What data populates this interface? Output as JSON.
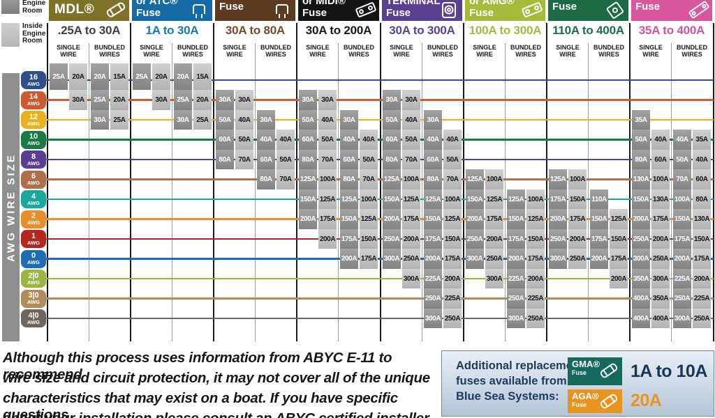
{
  "legend": {
    "engine_room": "Engine Room",
    "inside_engine_room": "Inside Engine Room"
  },
  "axis": {
    "label": "AWG WIRE SIZE",
    "row_unit": "AWG"
  },
  "subheaders": {
    "single": "SINGLE WIRE",
    "bundled": "BUNDLED WIRES"
  },
  "footer": {
    "lines": [
      "Although this process uses information from ABYC E-11 to recommend",
      "wire size and circuit protection, it may not cover all of the unique",
      "characteristics that may exist on a boat. If you have specific questions",
      "about your installation please consult an ABYC certified installer."
    ]
  },
  "info_box": {
    "lines": [
      "Additional replacement",
      "fuses available from",
      "Blue Sea Systems:"
    ],
    "items": [
      {
        "name": "GMA®",
        "sub": "Fuse",
        "color": "#15695e",
        "range": "1A to 10A",
        "range_color": "#16365c"
      },
      {
        "name": "AGA®",
        "sub": "Fuse",
        "color": "#e8941f",
        "range": "20A",
        "range_color": "#e8941f"
      }
    ]
  },
  "chart_data": {
    "type": "table",
    "title": "Fuse selection by AWG wire size (engine room / inside engine room ratings, single vs bundled wires)",
    "rows": [
      {
        "id": "16",
        "label": "16",
        "color": "#2d4f8e"
      },
      {
        "id": "14",
        "label": "14",
        "color": "#cf5a2e"
      },
      {
        "id": "12",
        "label": "12",
        "color": "#eab11e"
      },
      {
        "id": "10",
        "label": "10",
        "color": "#187a45"
      },
      {
        "id": "8",
        "label": "8",
        "color": "#5b3d94"
      },
      {
        "id": "6",
        "label": "6",
        "color": "#b06f4a"
      },
      {
        "id": "4",
        "label": "4",
        "color": "#18a8a0"
      },
      {
        "id": "2",
        "label": "2",
        "color": "#e88f29"
      },
      {
        "id": "1",
        "label": "1",
        "color": "#b5271d"
      },
      {
        "id": "0",
        "label": "0",
        "color": "#1d6cb5"
      },
      {
        "id": "2|0",
        "label": "2|0",
        "color": "#9cb53c"
      },
      {
        "id": "3|0",
        "label": "3|0",
        "color": "#b28b5a"
      },
      {
        "id": "4|0",
        "label": "4|0",
        "color": "#6f655c"
      }
    ],
    "columns": [
      {
        "id": "mdl",
        "header_lines": [
          "MDL®"
        ],
        "header_color": "#7d7228",
        "range": ".25A to 30A",
        "range_color": "#3f3f3f",
        "icon": "glass-fuse",
        "cells": {
          "single": {
            "16": [
              "25A",
              "20A"
            ],
            "14": [
              null,
              "30A"
            ]
          },
          "bundled": {
            "16": [
              "20A",
              "15A"
            ],
            "14": [
              "25A",
              "20A"
            ],
            "12": [
              "30A",
              "25A"
            ]
          }
        }
      },
      {
        "id": "atc",
        "header_lines": [
          "or ATC®",
          "Fuse"
        ],
        "header_color": "#146ba8",
        "range": "1A to 30A",
        "range_color": "#1a75b5",
        "icon": "blade-fuse",
        "cells": {
          "single": {
            "16": [
              "25A",
              "20A"
            ],
            "14": [
              null,
              "30A"
            ]
          },
          "bundled": {
            "16": [
              "20A",
              "15A"
            ],
            "14": [
              "25A",
              "20A"
            ],
            "12": [
              "30A",
              "25A"
            ]
          }
        }
      },
      {
        "id": "maxi",
        "header_lines": [
          "Fuse"
        ],
        "header_color": "#5d3b23",
        "range": "30A to 80A",
        "range_color": "#7a4a2a",
        "icon": "blade-fuse",
        "cells": {
          "single": {
            "14": [
              "30A",
              "30A"
            ],
            "12": [
              "50A",
              "40A"
            ],
            "10": [
              "60A",
              "50A"
            ],
            "8": [
              "80A",
              "70A"
            ]
          },
          "bundled": {
            "12": [
              "30A",
              null
            ],
            "10": [
              "40A",
              "40A"
            ],
            "8": [
              "60A",
              "50A"
            ],
            "6": [
              "80A",
              "70A"
            ]
          }
        }
      },
      {
        "id": "midi",
        "header_lines": [
          "or MIDI®",
          "Fuse"
        ],
        "header_color": "#141414",
        "range": "30A to 200A",
        "range_color": "#1a1a1a",
        "icon": "bolt-fuse",
        "cells": {
          "single": {
            "14": [
              "30A",
              "30A"
            ],
            "12": [
              "50A",
              "40A"
            ],
            "10": [
              "60A",
              "50A"
            ],
            "8": [
              "80A",
              "70A"
            ],
            "6": [
              "125A",
              "100A"
            ],
            "4": [
              "150A",
              "125A"
            ],
            "2": [
              "200A",
              "175A"
            ],
            "1": [
              null,
              "200A"
            ]
          },
          "bundled": {
            "12": [
              "30A",
              null
            ],
            "10": [
              "40A",
              "40A"
            ],
            "8": [
              "60A",
              "50A"
            ],
            "6": [
              "80A",
              "70A"
            ],
            "4": [
              "125A",
              "100A"
            ],
            "2": [
              "150A",
              "125A"
            ],
            "1": [
              "175A",
              "150A"
            ],
            "0": [
              "200A",
              "175A"
            ]
          }
        }
      },
      {
        "id": "terminal",
        "header_lines": [
          "TERMINAL",
          "Fuse"
        ],
        "header_color": "#5a4090",
        "range": "30A to 300A",
        "range_color": "#5b4195",
        "icon": "terminal-fuse",
        "cells": {
          "single": {
            "14": [
              "30A",
              "30A"
            ],
            "12": [
              "50A",
              "40A"
            ],
            "10": [
              "60A",
              "50A"
            ],
            "8": [
              "80A",
              "70A"
            ],
            "6": [
              "125A",
              "100A"
            ],
            "4": [
              "150A",
              "125A"
            ],
            "2": [
              "200A",
              "175A"
            ],
            "1": [
              "250A",
              "200A"
            ],
            "0": [
              "300A",
              "250A"
            ],
            "2|0": [
              null,
              "300A"
            ]
          },
          "bundled": {
            "12": [
              "30A",
              null
            ],
            "10": [
              "40A",
              "40A"
            ],
            "8": [
              "60A",
              "50A"
            ],
            "6": [
              "80A",
              "70A"
            ],
            "4": [
              "125A",
              "100A"
            ],
            "2": [
              "150A",
              "125A"
            ],
            "1": [
              "175A",
              "150A"
            ],
            "0": [
              "200A",
              "175A"
            ],
            "2|0": [
              "225A",
              "200A"
            ],
            "3|0": [
              "250A",
              "225A"
            ],
            "4|0": [
              "300A",
              "250A"
            ]
          }
        }
      },
      {
        "id": "amg",
        "header_lines": [
          "or AMG®",
          "Fuse"
        ],
        "header_color": "#a8ba3c",
        "range": "100A to 300A",
        "range_color": "#a6b842",
        "icon": "bolt-fuse",
        "cells": {
          "single": {
            "6": [
              "125A",
              "100A"
            ],
            "4": [
              "150A",
              "125A"
            ],
            "2": [
              "200A",
              "175A"
            ],
            "1": [
              "250A",
              "200A"
            ],
            "0": [
              "300A",
              "250A"
            ],
            "2|0": [
              null,
              "300A"
            ]
          },
          "bundled": {
            "4": [
              "125A",
              "100A"
            ],
            "2": [
              "150A",
              "125A"
            ],
            "1": [
              "175A",
              "150A"
            ],
            "0": [
              "200A",
              "175A"
            ],
            "2|0": [
              "225A",
              "200A"
            ],
            "3|0": [
              "250A",
              "225A"
            ],
            "4|0": [
              "300A",
              "250A"
            ]
          }
        }
      },
      {
        "id": "anl",
        "header_lines": [
          "Fuse"
        ],
        "header_color": "#1c6b44",
        "range": "110A to 400A",
        "range_color": "#1e6e48",
        "icon": "anl-fuse",
        "cells": {
          "single": {
            "6": [
              "125A",
              "100A"
            ],
            "4": [
              "175A",
              "150A"
            ],
            "2": [
              "200A",
              "175A"
            ],
            "1": [
              "250A",
              "200A"
            ],
            "0": [
              "300A",
              "250A"
            ]
          },
          "bundled": {
            "4": [
              "110A",
              null
            ],
            "2": [
              "150A",
              "125A"
            ],
            "1": [
              "175A",
              "150A"
            ],
            "0": [
              "200A",
              "175A"
            ],
            "2|0": [
              null,
              "200A"
            ]
          }
        }
      },
      {
        "id": "classt",
        "header_lines": [
          "Fuse"
        ],
        "header_color": "#d8569d",
        "range": "35A to 400A",
        "range_color": "#d6539b",
        "icon": "classt-fuse",
        "cells": {
          "single": {
            "12": [
              "35A",
              null
            ],
            "10": [
              "50A",
              "40A"
            ],
            "8": [
              "80A",
              "60A"
            ],
            "6": [
              "130A",
              "100A"
            ],
            "4": [
              "150A",
              "130A"
            ],
            "2": [
              "200A",
              "175A"
            ],
            "1": [
              "250A",
              "200A"
            ],
            "0": [
              "300A",
              "250A"
            ],
            "2|0": [
              "350A",
              "300A"
            ],
            "3|0": [
              "400A",
              "350A"
            ],
            "4|0": [
              "400A",
              "400A"
            ]
          },
          "bundled": {
            "10": [
              "40A",
              "35A"
            ],
            "8": [
              "50A",
              "40A"
            ],
            "6": [
              "70A",
              "60A"
            ],
            "4": [
              "100A",
              "80A"
            ],
            "2": [
              "150A",
              "130A"
            ],
            "1": [
              "175A",
              "150A"
            ],
            "0": [
              "200A",
              "175A"
            ],
            "2|0": [
              "225A",
              "200A"
            ],
            "3|0": [
              "250A",
              "225A"
            ],
            "4|0": [
              "300A",
              "250A"
            ]
          }
        }
      }
    ]
  }
}
